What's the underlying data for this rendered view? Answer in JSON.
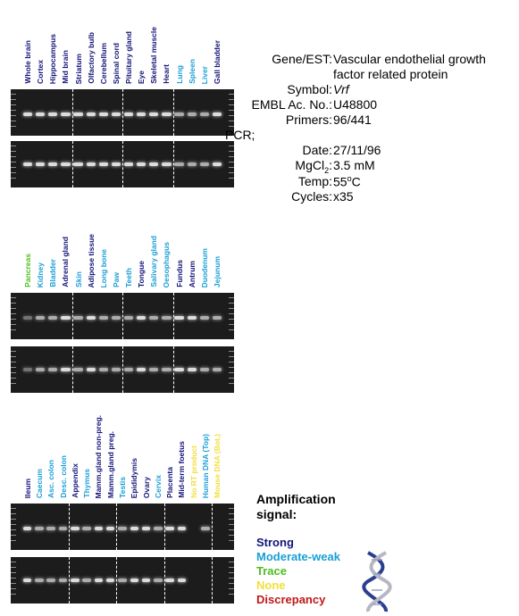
{
  "colors": {
    "strong": "#14147a",
    "moderate": "#1a9fd6",
    "trace": "#4cbf1e",
    "none": "#f2df3a",
    "discrepancy": "#c11818"
  },
  "panels": [
    {
      "lanes": [
        {
          "label": "Whole brain",
          "level": "strong"
        },
        {
          "label": "Cortex",
          "level": "strong"
        },
        {
          "label": "Hippocampus",
          "level": "strong"
        },
        {
          "label": "Mid brain",
          "level": "strong"
        },
        {
          "label": "Striatum",
          "level": "strong"
        },
        {
          "label": "Olfactory bulb",
          "level": "strong"
        },
        {
          "label": "Cerebellum",
          "level": "strong"
        },
        {
          "label": "Spinal cord",
          "level": "strong"
        },
        {
          "label": "Pituitary gland",
          "level": "strong"
        },
        {
          "label": "Eye",
          "level": "strong"
        },
        {
          "label": "Skeletal muscle",
          "level": "strong"
        },
        {
          "label": "Heart",
          "level": "strong"
        },
        {
          "label": "Lung",
          "level": "moderate"
        },
        {
          "label": "Spleen",
          "level": "moderate"
        },
        {
          "label": "Liver",
          "level": "moderate"
        },
        {
          "label": "Gall bladder",
          "level": "strong"
        }
      ]
    },
    {
      "lanes": [
        {
          "label": "Pancreas",
          "level": "trace"
        },
        {
          "label": "Kidney",
          "level": "moderate"
        },
        {
          "label": "Bladder",
          "level": "moderate"
        },
        {
          "label": "Adrenal gland",
          "level": "strong"
        },
        {
          "label": "Skin",
          "level": "moderate"
        },
        {
          "label": "Adipose tissue",
          "level": "strong"
        },
        {
          "label": "Long bone",
          "level": "moderate"
        },
        {
          "label": "Paw",
          "level": "moderate"
        },
        {
          "label": "Teeth",
          "level": "moderate"
        },
        {
          "label": "Tongue",
          "level": "strong"
        },
        {
          "label": "Salivary gland",
          "level": "moderate"
        },
        {
          "label": "Oesophagus",
          "level": "moderate"
        },
        {
          "label": "Fundus",
          "level": "strong"
        },
        {
          "label": "Antrum",
          "level": "strong"
        },
        {
          "label": "Duodenum",
          "level": "moderate"
        },
        {
          "label": "Jejunum",
          "level": "moderate"
        }
      ]
    },
    {
      "lanes": [
        {
          "label": "Ileum",
          "level": "strong"
        },
        {
          "label": "Caecum",
          "level": "moderate"
        },
        {
          "label": "Asc. colon",
          "level": "moderate"
        },
        {
          "label": "Desc. colon",
          "level": "moderate"
        },
        {
          "label": "Appendix",
          "level": "strong"
        },
        {
          "label": "Thymus",
          "level": "moderate"
        },
        {
          "label": "Mamm.gland non-preg.",
          "level": "strong"
        },
        {
          "label": "Mamm.gland preg.",
          "level": "strong"
        },
        {
          "label": "Testis",
          "level": "moderate"
        },
        {
          "label": "Epididymis",
          "level": "strong"
        },
        {
          "label": "Ovary",
          "level": "strong"
        },
        {
          "label": "Cervix",
          "level": "moderate"
        },
        {
          "label": "Placenta",
          "level": "strong"
        },
        {
          "label": "Mid-term foetus",
          "level": "strong"
        },
        {
          "label": "No RT product",
          "level": "none"
        },
        {
          "label": "Human DNA (Top)",
          "level": "moderate"
        },
        {
          "label": "Mouse DNA (Bot.)",
          "level": "none"
        }
      ]
    }
  ],
  "info": {
    "gene_key": "Gene/EST:",
    "gene_val_1": "Vascular endothelial growth",
    "gene_val_2": "factor related protein",
    "symbol_key": "Symbol:",
    "symbol_val": "Vrf",
    "embl_key": "EMBL Ac. No.:",
    "embl_val": "U48800",
    "primers_key": "Primers:",
    "primers_val": "96/441",
    "pcr_key": "PCR;",
    "date_key": "Date:",
    "date_val": "27/11/96",
    "mgcl_key_prefix": "MgCl",
    "mgcl_key_sub": "2",
    "mgcl_key_suffix": ":",
    "mgcl_val": "3.5 mM",
    "temp_key": "Temp:",
    "temp_val_num": "55",
    "temp_val_sup": "o",
    "temp_val_unit": "C",
    "cycles_key": "Cycles:",
    "cycles_val": "x35"
  },
  "legend": {
    "title_1": "Amplification",
    "title_2": "signal:",
    "strong": "Strong",
    "moderate": "Moderate-weak",
    "trace": "Trace",
    "none": "None",
    "discrepancy": "Discrepancy"
  }
}
